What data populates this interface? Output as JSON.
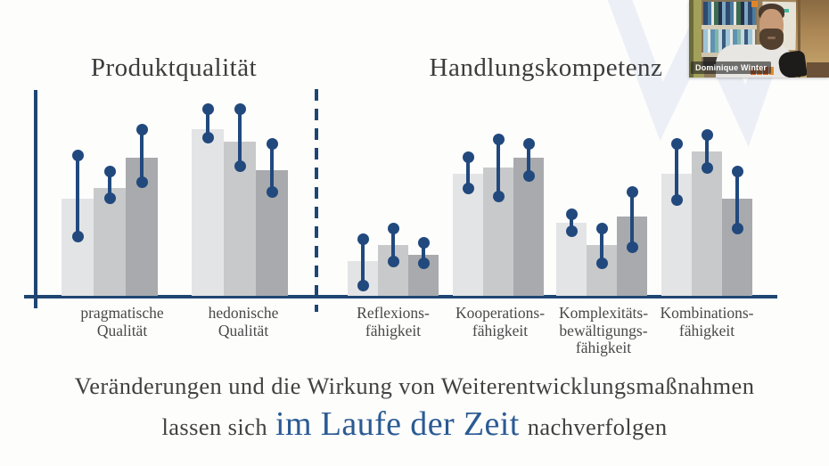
{
  "slide": {
    "takeaway_line1": "Veränderungen und die Wirkung von Weiterentwicklungsmaßnahmen",
    "takeaway_line2_prefix": "lassen sich",
    "takeaway_highlight": "im Laufe der Zeit",
    "takeaway_line2_suffix": "nachverfolgen",
    "accent_blue": "#2a5b94",
    "axis_color": "#1f4673",
    "marker_color": "#21497d",
    "bar_colors": [
      "#e3e4e6",
      "#c8c9cb",
      "#a8aaad"
    ]
  },
  "webcam": {
    "participant_name": "Dominique Winter"
  },
  "chart_data": [
    {
      "type": "bar",
      "title": "Produktqualität",
      "ylabel": "",
      "ylim": [
        0,
        100
      ],
      "unit": "relative scale (no y-axis ticks shown); bars = 3 measurements per category, whisker ranges = change markers",
      "grid": false,
      "legend": false,
      "groups": [
        {
          "label_lines": [
            "pragmatische",
            "Qualität"
          ],
          "bars": [
            48,
            53,
            68
          ],
          "ranges": [
            [
              29,
              69
            ],
            [
              48,
              61
            ],
            [
              56,
              82
            ]
          ]
        },
        {
          "label_lines": [
            "hedonische",
            "Qualität"
          ],
          "bars": [
            82,
            76,
            62
          ],
          "ranges": [
            [
              78,
              92
            ],
            [
              64,
              92
            ],
            [
              51,
              75
            ]
          ]
        }
      ]
    },
    {
      "type": "bar",
      "title": "Handlungskompetenz",
      "ylabel": "",
      "ylim": [
        0,
        100
      ],
      "unit": "relative scale (no y-axis ticks shown); bars = 3 measurements per category, whisker ranges = change markers",
      "grid": false,
      "legend": false,
      "groups": [
        {
          "label_lines": [
            "Reflexions-",
            "fähigkeit"
          ],
          "bars": [
            17,
            25,
            20
          ],
          "ranges": [
            [
              5,
              28
            ],
            [
              17,
              33
            ],
            [
              16,
              26
            ]
          ]
        },
        {
          "label_lines": [
            "Kooperations-",
            "fähigkeit"
          ],
          "bars": [
            60,
            63,
            68
          ],
          "ranges": [
            [
              53,
              68
            ],
            [
              49,
              77
            ],
            [
              59,
              75
            ]
          ]
        },
        {
          "label_lines": [
            "Komplexitäts-",
            "bewältigungs-",
            "fähigkeit"
          ],
          "bars": [
            36,
            25,
            39
          ],
          "ranges": [
            [
              32,
              40
            ],
            [
              16,
              33
            ],
            [
              24,
              51
            ]
          ]
        },
        {
          "label_lines": [
            "Kombinations-",
            "fähigkeit"
          ],
          "bars": [
            60,
            71,
            48
          ],
          "ranges": [
            [
              47,
              75
            ],
            [
              63,
              79
            ],
            [
              33,
              61
            ]
          ]
        }
      ]
    }
  ]
}
